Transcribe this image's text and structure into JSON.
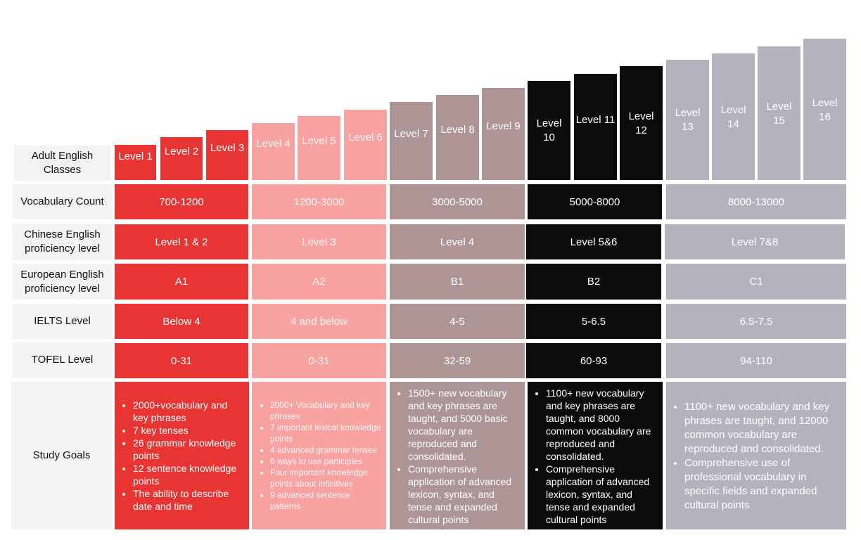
{
  "colors": {
    "red": "#e93434",
    "pink": "#f8a3a1",
    "mauve": "#ad9595",
    "black": "#0d0a0a",
    "grey": "#b4b3bd",
    "header_bg": "#f3f3f3"
  },
  "row_headers": {
    "classes": "Adult English Classes",
    "vocab": "Vocabulary Count",
    "chinese": "Chinese English proficiency level",
    "european": "European English proficiency level",
    "ielts": "IELTS Level",
    "tofel": "TOFEL Level",
    "goals": "Study Goals"
  },
  "levels": [
    "Level 1",
    "Level 2",
    "Level 3",
    "Level 4",
    "Level 5",
    "Level 6",
    "Level 7",
    "Level 8",
    "Level 9",
    "Level 10",
    "Level 11",
    "Level 12",
    "Level 13",
    "Level 14",
    "Level 15",
    "Level 16"
  ],
  "groups": [
    {
      "vocab": "700-1200",
      "chinese": "Level 1 & 2",
      "european": "A1",
      "ielts": "Below 4",
      "tofel": "0-31",
      "goals": [
        "2000+vocabulary and key phrases",
        "7 key tenses",
        "26 grammar knowledge points",
        "12 sentence knowledge points",
        "The ability to describe date and time"
      ]
    },
    {
      "vocab": "1200-3000",
      "chinese": "Level 3",
      "european": "A2",
      "ielts": "4 and below",
      "tofel": "0-31",
      "goals": [
        "2000+ Vocabulary and key phrases",
        "7 important lexical knowledge points",
        "4 advanced grammar tenses",
        "6 ways to use participles",
        "Four important knowledge points about infinitives",
        "9 advanced sentence patterns"
      ]
    },
    {
      "vocab": "3000-5000",
      "chinese": "Level 4",
      "european": "B1",
      "ielts": "4-5",
      "tofel": "32-59",
      "goals": [
        "1500+ new vocabulary and key phrases are taught, and 5000 basic vocabulary are reproduced and consolidated.",
        "Comprehensive application of advanced lexicon, syntax, and tense and expanded cultural points"
      ]
    },
    {
      "vocab": "5000-8000",
      "chinese": "Level 5&6",
      "european": "B2",
      "ielts": "5-6.5",
      "tofel": "60-93",
      "goals": [
        "1100+ new vocabulary and key phrases are taught, and 8000 common vocabulary are reproduced and consolidated.",
        "Comprehensive application of advanced lexicon, syntax, and tense and expanded cultural points"
      ]
    },
    {
      "vocab": "8000-13000",
      "chinese": "Level 7&8",
      "european": "C1",
      "ielts": "6.5-7.5",
      "tofel": "94-110",
      "goals": [
        "1100+ new vocabulary and key phrases are taught, and 12000 common vocabulary are reproduced and consolidated.",
        "Comprehensive use of professional vocabulary in specific fields and expanded cultural points"
      ]
    }
  ]
}
